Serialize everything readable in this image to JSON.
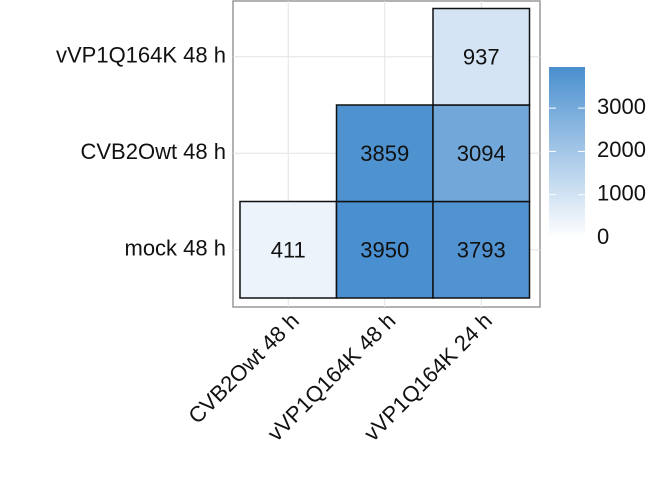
{
  "chart_data": {
    "type": "heatmap",
    "x_categories": [
      "CVB2Owt 48 h",
      "vVP1Q164K 48 h",
      "vVP1Q164K 24 h"
    ],
    "y_categories": [
      "mock 48 h",
      "CVB2Owt 48 h",
      "vVP1Q164K 48 h"
    ],
    "values": [
      [
        411,
        3950,
        3793
      ],
      [
        null,
        3859,
        3094
      ],
      [
        null,
        null,
        937
      ]
    ],
    "clim": [
      0,
      3950
    ],
    "cticks": [
      0,
      1000,
      2000,
      3000
    ],
    "color_low": "#ffffff",
    "color_high": "#4a8fcf",
    "grid": true
  }
}
